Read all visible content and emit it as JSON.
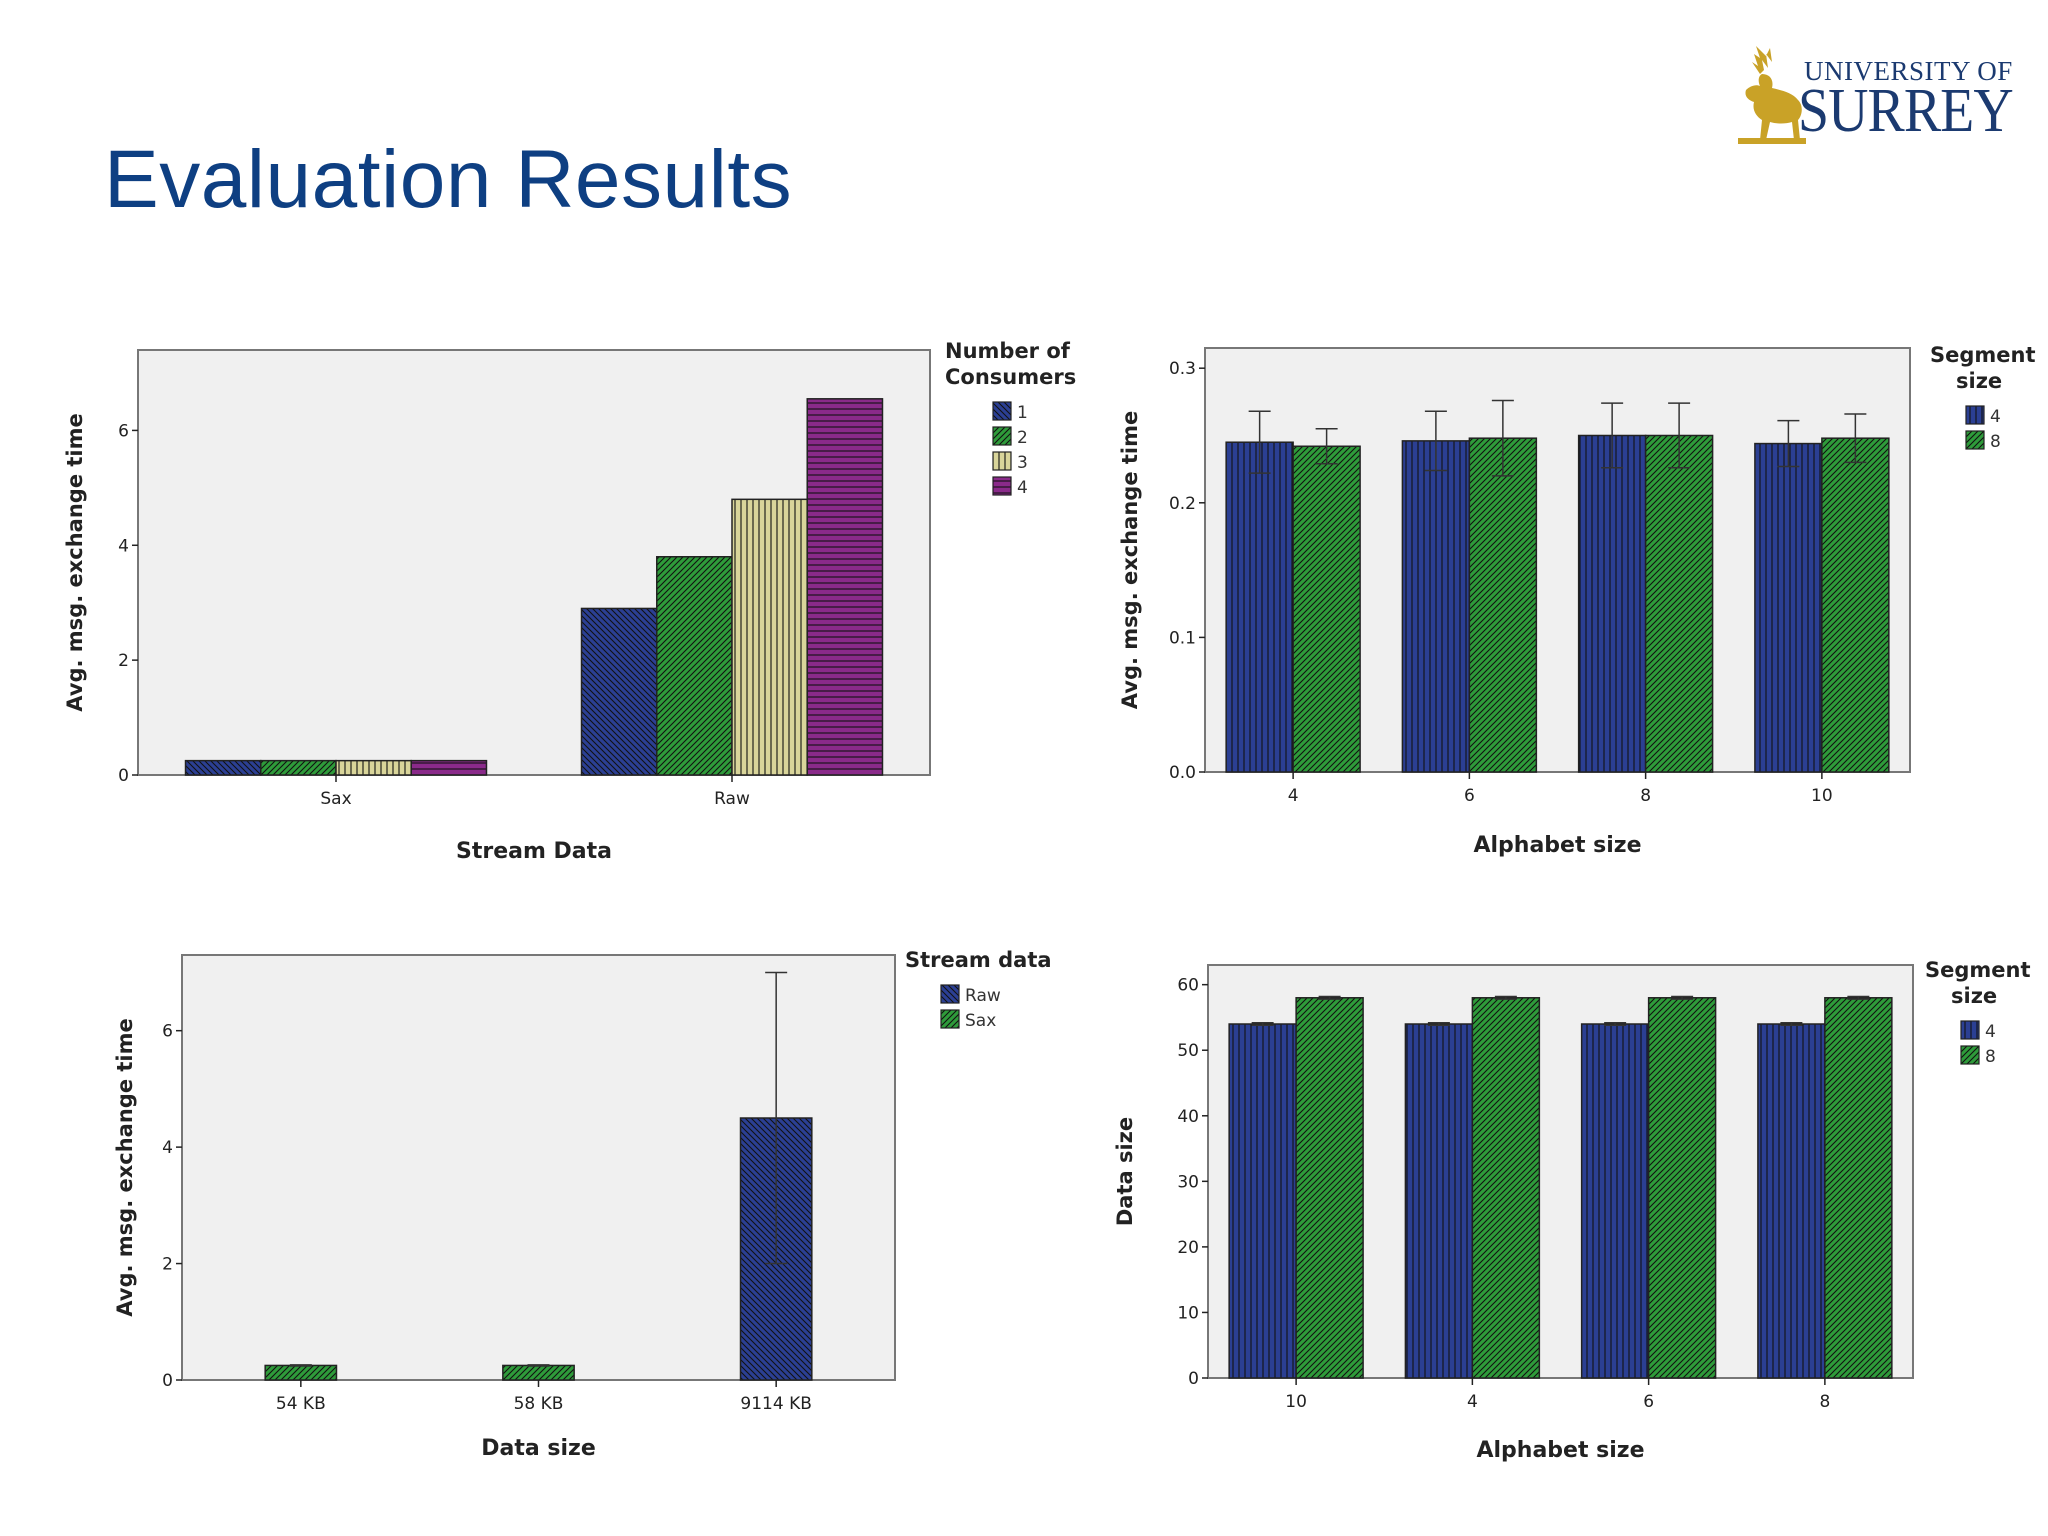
{
  "slide": {
    "title": "Evaluation Results"
  },
  "logo": {
    "line1": "UNIVERSITY OF",
    "line2": "SURREY"
  },
  "chart_data": [
    {
      "type": "bar",
      "xlabel": "Stream Data",
      "ylabel": "Avg. msg. exchange time",
      "categories": [
        "Sax",
        "Raw"
      ],
      "legend_title": [
        "Number of",
        "Consumers"
      ],
      "legend_position": "right",
      "ylim": [
        0,
        7.4
      ],
      "yticks": [
        0,
        2,
        4,
        6
      ],
      "series": [
        {
          "name": "1",
          "values": [
            0.25,
            2.9
          ],
          "color": "#2b3f93",
          "pattern": "diag-down"
        },
        {
          "name": "2",
          "values": [
            0.25,
            3.8
          ],
          "color": "#2e9b3a",
          "pattern": "diag-up"
        },
        {
          "name": "3",
          "values": [
            0.25,
            4.8
          ],
          "color": "#d9d59a",
          "pattern": "vertical"
        },
        {
          "name": "4",
          "values": [
            0.25,
            6.55
          ],
          "color": "#8a2a8a",
          "pattern": "horizontal"
        }
      ]
    },
    {
      "type": "bar",
      "xlabel": "Alphabet size",
      "ylabel": "Avg. msg. exchange time",
      "categories": [
        "4",
        "6",
        "8",
        "10"
      ],
      "legend_title": [
        "Segment",
        "size"
      ],
      "legend_position": "right",
      "ylim": [
        0,
        0.315
      ],
      "yticks": [
        0.0,
        0.1,
        0.2,
        0.3
      ],
      "ytick_labels": [
        "0.0",
        "0.1",
        "0.2",
        "0.3"
      ],
      "series": [
        {
          "name": "4",
          "values": [
            0.245,
            0.246,
            0.25,
            0.244
          ],
          "err": [
            0.023,
            0.022,
            0.024,
            0.017
          ],
          "color": "#2b3f93",
          "pattern": "vertical"
        },
        {
          "name": "8",
          "values": [
            0.242,
            0.248,
            0.25,
            0.248
          ],
          "err": [
            0.013,
            0.028,
            0.024,
            0.018
          ],
          "color": "#2e9b3a",
          "pattern": "diag-up"
        }
      ]
    },
    {
      "type": "bar",
      "xlabel": "Data size",
      "ylabel": "Avg. msg. exchange time",
      "categories": [
        "54 KB",
        "58 KB",
        "9114 KB"
      ],
      "legend_title": [
        "Stream data"
      ],
      "legend_position": "right",
      "ylim": [
        0,
        7.3
      ],
      "yticks": [
        0,
        2,
        4,
        6
      ],
      "series": [
        {
          "name": "Raw",
          "values": [
            null,
            null,
            4.5
          ],
          "err": [
            null,
            null,
            2.5
          ],
          "color": "#2b3f93",
          "pattern": "diag-down"
        },
        {
          "name": "Sax",
          "values": [
            0.25,
            0.25,
            null
          ],
          "err": [
            0.01,
            0.01,
            null
          ],
          "color": "#2e9b3a",
          "pattern": "diag-up"
        }
      ]
    },
    {
      "type": "bar",
      "xlabel": "Alphabet size",
      "ylabel": "Data size",
      "categories": [
        "10",
        "4",
        "6",
        "8"
      ],
      "legend_title": [
        "Segment",
        "size"
      ],
      "legend_position": "right",
      "ylim": [
        0,
        63
      ],
      "yticks": [
        0,
        10,
        20,
        30,
        40,
        50,
        60
      ],
      "series": [
        {
          "name": "4",
          "values": [
            54,
            54,
            54,
            54
          ],
          "err": [
            0.2,
            0.2,
            0.2,
            0.2
          ],
          "color": "#2b3f93",
          "pattern": "vertical"
        },
        {
          "name": "8",
          "values": [
            58,
            58,
            58,
            58
          ],
          "err": [
            0.2,
            0.2,
            0.2,
            0.2
          ],
          "color": "#2e9b3a",
          "pattern": "diag-up"
        }
      ]
    }
  ]
}
